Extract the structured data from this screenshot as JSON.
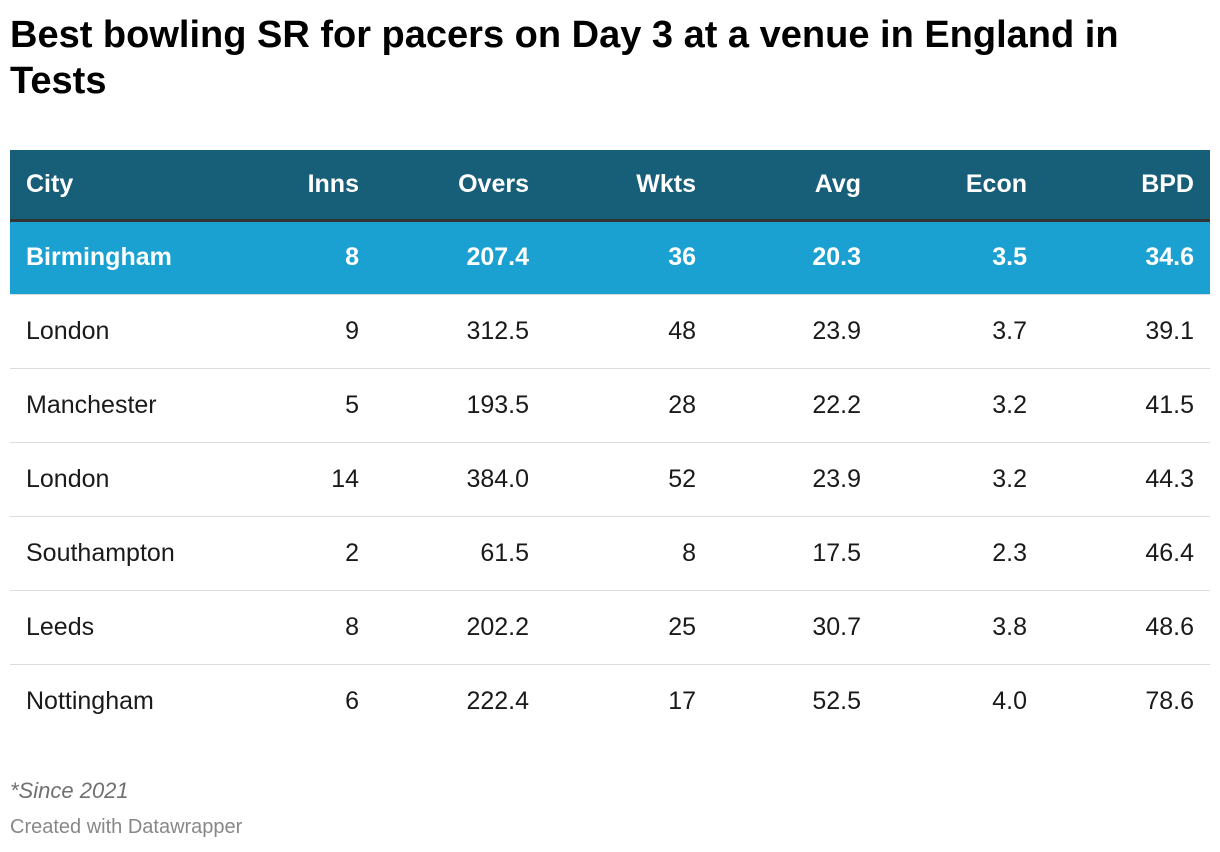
{
  "header": {
    "title": "Best bowling SR for pacers on Day 3 at a venue in England in Tests"
  },
  "table": {
    "columns": [
      "City",
      "Inns",
      "Overs",
      "Wkts",
      "Avg",
      "Econ",
      "BPD"
    ],
    "rows": [
      [
        "Birmingham",
        "8",
        "207.4",
        "36",
        "20.3",
        "3.5",
        "34.6"
      ],
      [
        "London",
        "9",
        "312.5",
        "48",
        "23.9",
        "3.7",
        "39.1"
      ],
      [
        "Manchester",
        "5",
        "193.5",
        "28",
        "22.2",
        "3.2",
        "41.5"
      ],
      [
        "London",
        "14",
        "384.0",
        "52",
        "23.9",
        "3.2",
        "44.3"
      ],
      [
        "Southampton",
        "2",
        "61.5",
        "8",
        "17.5",
        "2.3",
        "46.4"
      ],
      [
        "Leeds",
        "8",
        "202.2",
        "25",
        "30.7",
        "3.8",
        "48.6"
      ],
      [
        "Nottingham",
        "6",
        "222.4",
        "17",
        "52.5",
        "4.0",
        "78.6"
      ]
    ]
  },
  "footer": {
    "note": "*Since 2021",
    "credit": "Created with Datawrapper"
  }
}
